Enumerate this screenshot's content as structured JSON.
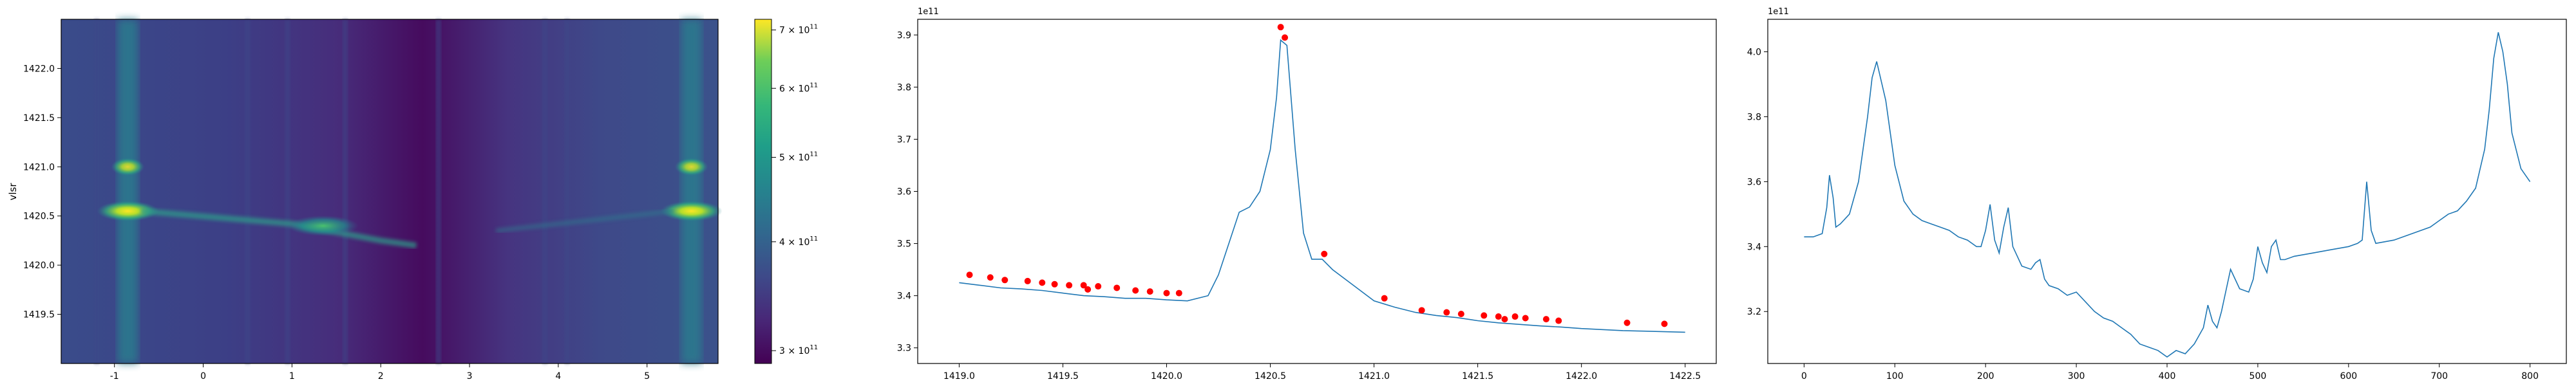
{
  "chart_data": [
    {
      "type": "heatmap",
      "title": "",
      "xlabel": "",
      "ylabel": "vlsr",
      "xlim": [
        -1.6,
        5.8
      ],
      "ylim": [
        1419.0,
        1422.5
      ],
      "x_ticks": [
        "-1",
        "0",
        "1",
        "2",
        "3",
        "4",
        "5"
      ],
      "y_ticks": [
        "1419.5",
        "1420.0",
        "1420.5",
        "1421.0",
        "1421.5",
        "1422.0"
      ],
      "colormap": "viridis",
      "colorbar": {
        "range": [
          290000000000.0,
          720000000000.0
        ],
        "ticks": [
          {
            "value": 300000000000.0,
            "base": "3 × 10",
            "exp": "11"
          },
          {
            "value": 400000000000.0,
            "base": "4 × 10",
            "exp": "11"
          },
          {
            "value": 500000000000.0,
            "base": "5 × 10",
            "exp": "11"
          },
          {
            "value": 600000000000.0,
            "base": "6 × 10",
            "exp": "11"
          },
          {
            "value": 700000000000.0,
            "base": "7 × 10",
            "exp": "11"
          }
        ]
      },
      "bright_columns_x": [
        -0.85,
        5.5
      ],
      "hotspot_y": 1420.55
    },
    {
      "type": "line",
      "title": "",
      "xlabel": "",
      "ylabel": "",
      "offset_text": "1e11",
      "xlim": [
        1418.8,
        1422.65
      ],
      "ylim": [
        3.27,
        3.93
      ],
      "x_ticks": [
        "1419.0",
        "1419.5",
        "1420.0",
        "1420.5",
        "1421.0",
        "1421.5",
        "1422.0",
        "1422.5"
      ],
      "y_ticks": [
        "3.3",
        "3.4",
        "3.5",
        "3.6",
        "3.7",
        "3.8",
        "3.9"
      ],
      "line_color": "#1f77b4",
      "marker_color": "#ff0000",
      "series": [
        {
          "x": [
            1419.0,
            1419.1,
            1419.2,
            1419.3,
            1419.4,
            1419.5,
            1419.6,
            1419.7,
            1419.8,
            1419.9,
            1420.0,
            1420.1,
            1420.2,
            1420.25,
            1420.3,
            1420.35,
            1420.4,
            1420.45,
            1420.5,
            1420.53,
            1420.55,
            1420.58,
            1420.62,
            1420.66,
            1420.7,
            1420.75,
            1420.8,
            1420.9,
            1421.0,
            1421.1,
            1421.2,
            1421.3,
            1421.4,
            1421.5,
            1421.6,
            1421.7,
            1421.8,
            1421.9,
            1422.0,
            1422.1,
            1422.2,
            1422.3,
            1422.4,
            1422.5
          ],
          "y": [
            3.425,
            3.42,
            3.415,
            3.413,
            3.41,
            3.405,
            3.4,
            3.398,
            3.395,
            3.395,
            3.392,
            3.39,
            3.4,
            3.44,
            3.5,
            3.56,
            3.57,
            3.6,
            3.68,
            3.78,
            3.89,
            3.88,
            3.68,
            3.52,
            3.47,
            3.47,
            3.45,
            3.42,
            3.39,
            3.378,
            3.368,
            3.362,
            3.358,
            3.352,
            3.348,
            3.345,
            3.342,
            3.34,
            3.337,
            3.335,
            3.333,
            3.332,
            3.331,
            3.33
          ]
        }
      ],
      "markers": {
        "x": [
          1419.05,
          1419.15,
          1419.22,
          1419.33,
          1419.4,
          1419.46,
          1419.53,
          1419.6,
          1419.62,
          1419.67,
          1419.76,
          1419.85,
          1419.92,
          1420.0,
          1420.06,
          1420.55,
          1420.57,
          1420.76,
          1421.05,
          1421.23,
          1421.35,
          1421.42,
          1421.53,
          1421.6,
          1421.63,
          1421.68,
          1421.73,
          1421.83,
          1421.89,
          1422.22,
          1422.4
        ],
        "y": [
          3.44,
          3.435,
          3.43,
          3.428,
          3.425,
          3.422,
          3.42,
          3.42,
          3.412,
          3.418,
          3.415,
          3.41,
          3.408,
          3.405,
          3.405,
          3.915,
          3.895,
          3.48,
          3.395,
          3.372,
          3.368,
          3.365,
          3.362,
          3.36,
          3.355,
          3.36,
          3.357,
          3.355,
          3.352,
          3.348,
          3.346
        ]
      }
    },
    {
      "type": "line",
      "title": "",
      "xlabel": "",
      "ylabel": "",
      "offset_text": "1e11",
      "xlim": [
        -40,
        840
      ],
      "ylim": [
        3.04,
        4.1
      ],
      "x_ticks": [
        "0",
        "100",
        "200",
        "300",
        "400",
        "500",
        "600",
        "700",
        "800"
      ],
      "y_ticks": [
        "3.2",
        "3.4",
        "3.6",
        "3.8",
        "4.0"
      ],
      "line_color": "#1f77b4",
      "series": [
        {
          "x": [
            0,
            10,
            20,
            25,
            28,
            32,
            35,
            40,
            50,
            60,
            70,
            75,
            80,
            90,
            100,
            110,
            120,
            130,
            140,
            150,
            160,
            170,
            180,
            190,
            195,
            200,
            205,
            210,
            215,
            220,
            225,
            230,
            235,
            240,
            250,
            255,
            260,
            265,
            270,
            280,
            290,
            300,
            310,
            320,
            330,
            340,
            350,
            360,
            370,
            380,
            390,
            400,
            410,
            420,
            430,
            440,
            445,
            450,
            455,
            460,
            470,
            480,
            490,
            495,
            500,
            505,
            510,
            515,
            520,
            525,
            530,
            540,
            560,
            580,
            600,
            610,
            615,
            620,
            625,
            630,
            650,
            670,
            690,
            700,
            710,
            720,
            730,
            740,
            750,
            755,
            760,
            765,
            770,
            775,
            780,
            790,
            800
          ],
          "y": [
            3.43,
            3.43,
            3.44,
            3.52,
            3.62,
            3.55,
            3.46,
            3.47,
            3.5,
            3.6,
            3.8,
            3.92,
            3.97,
            3.85,
            3.65,
            3.54,
            3.5,
            3.48,
            3.47,
            3.46,
            3.45,
            3.43,
            3.42,
            3.4,
            3.4,
            3.45,
            3.53,
            3.42,
            3.38,
            3.46,
            3.52,
            3.4,
            3.37,
            3.34,
            3.33,
            3.35,
            3.36,
            3.3,
            3.28,
            3.27,
            3.25,
            3.26,
            3.23,
            3.2,
            3.18,
            3.17,
            3.15,
            3.13,
            3.1,
            3.09,
            3.08,
            3.06,
            3.08,
            3.07,
            3.1,
            3.15,
            3.22,
            3.17,
            3.15,
            3.2,
            3.33,
            3.27,
            3.26,
            3.3,
            3.4,
            3.35,
            3.32,
            3.4,
            3.42,
            3.36,
            3.36,
            3.37,
            3.38,
            3.39,
            3.4,
            3.41,
            3.42,
            3.6,
            3.45,
            3.41,
            3.42,
            3.44,
            3.46,
            3.48,
            3.5,
            3.51,
            3.54,
            3.58,
            3.7,
            3.82,
            3.98,
            4.06,
            4.0,
            3.9,
            3.75,
            3.64,
            3.6
          ]
        }
      ]
    }
  ]
}
